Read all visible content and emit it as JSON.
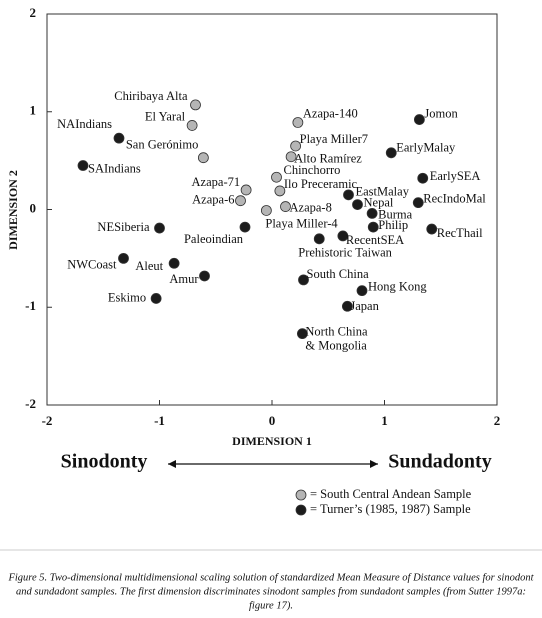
{
  "chart_data": {
    "type": "scatter",
    "xlabel": "DIMENSION 1",
    "ylabel": "DIMENSION 2",
    "xlim": [
      -2,
      2
    ],
    "ylim": [
      -2,
      2
    ],
    "xticks": [
      -2,
      -1,
      0,
      1,
      2
    ],
    "yticks": [
      -2,
      -1,
      0,
      1,
      2
    ],
    "series": [
      {
        "name": "= South Central Andean Sample",
        "color": "#b5b5b5",
        "labels": [
          "Chiribaya Alta",
          "El Yaral",
          "San Gerónimo",
          "Azapa-71",
          "Azapa-6",
          "Playa Miller-4",
          "Azapa-140",
          "Playa Miller7",
          "Alto Ramírez",
          "Chinchorro",
          "Ilo Preceramic",
          "Azapa-8"
        ],
        "x": [
          -0.68,
          -0.71,
          -0.61,
          -0.23,
          -0.28,
          -0.05,
          0.23,
          0.21,
          0.17,
          0.04,
          0.07,
          0.12
        ],
        "y": [
          1.07,
          0.86,
          0.53,
          0.2,
          0.09,
          -0.01,
          0.89,
          0.65,
          0.54,
          0.33,
          0.19,
          0.03
        ]
      },
      {
        "name": "= Turner’s (1985, 1987) Sample",
        "color": "#1c1c1c",
        "labels": [
          "Jomon",
          "EarlyMalay",
          "EarlySEA",
          "RecIndoMal",
          "RecThail",
          "EastMalay",
          "Nepal",
          "Burma",
          "Philip",
          "RecentSEA",
          "Prehistoric Taiwan",
          "South China",
          "Hong Kong",
          "Japan",
          [
            "North China",
            "& Mongolia"
          ],
          "NAIndians",
          "SAIndians",
          "NESiberia",
          "Paleoindian",
          "NWCoast",
          "Aleut",
          "Amur",
          "Eskimo"
        ],
        "x": [
          1.31,
          1.06,
          1.34,
          1.3,
          1.42,
          0.68,
          0.76,
          0.89,
          0.9,
          0.63,
          0.42,
          0.28,
          0.8,
          0.67,
          0.27,
          -1.36,
          -1.68,
          -1.0,
          -0.24,
          -1.32,
          -0.87,
          -0.6,
          -1.03
        ],
        "y": [
          0.92,
          0.58,
          0.32,
          0.07,
          -0.2,
          0.15,
          0.05,
          -0.04,
          -0.18,
          -0.27,
          -0.3,
          -0.72,
          -0.83,
          -0.99,
          -1.27,
          0.73,
          0.45,
          -0.19,
          -0.18,
          -0.5,
          -0.55,
          -0.68,
          -0.91
        ]
      }
    ],
    "left_label": "Sinodonty",
    "right_label": "Sundadonty",
    "caption": [
      "Figure 5.  Two-dimensional multidimensional scaling solution of standardized Mean Measure of Distance values for sinodont",
      "and sundadont samples.  The first dimension discriminates sinodont samples from sundadont samples (from Sutter 1997a:",
      "figure 17)."
    ]
  }
}
